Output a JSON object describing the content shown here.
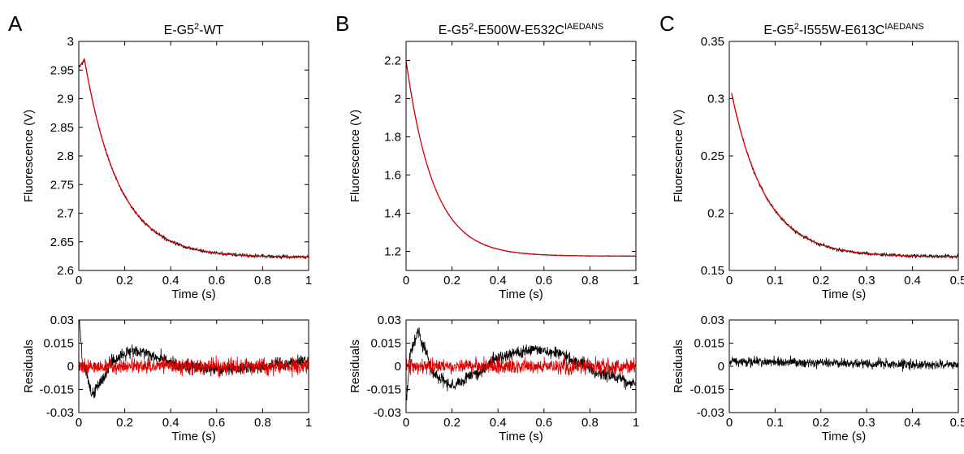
{
  "panel_labels": [
    "A",
    "B",
    "C"
  ],
  "chart_data": [
    {
      "type": "line",
      "panel": "A",
      "title": {
        "base": "E-G5",
        "sup1": "2",
        "mid": "-WT",
        "sup2": ""
      },
      "xlabel": "Time (s)",
      "ylabel": "Fluorescence (V)",
      "xlim": [
        0,
        1
      ],
      "ylim": [
        2.6,
        3
      ],
      "xticks": [
        "0",
        "0.2",
        "0.4",
        "0.6",
        "0.8",
        "1"
      ],
      "yticks": [
        "2.6",
        "2.65",
        "2.7",
        "2.75",
        "2.8",
        "2.85",
        "2.9",
        "2.95",
        "3"
      ],
      "trace": {
        "kind": "rise-decay",
        "peak_t": 0.025,
        "start": 2.955,
        "peak": 2.968,
        "plateau": 2.623,
        "tau": 0.15,
        "noise": 0.003
      },
      "series": [
        {
          "name": "",
          "color": "#000000",
          "role": "data"
        },
        {
          "name": "",
          "color": "#dd0000",
          "role": "fit"
        }
      ],
      "residuals": {
        "ylabel": "Residuals",
        "xlabel": "Time (s)",
        "ylim": [
          -0.03,
          0.03
        ],
        "yticks": [
          "-0.03",
          "-0.015",
          "0",
          "0.015",
          "0.03"
        ],
        "xticks": [
          "0",
          "0.2",
          "0.4",
          "0.6",
          "0.8",
          "1"
        ],
        "black_trend": [
          [
            0.0,
            0.03
          ],
          [
            0.02,
            0.0
          ],
          [
            0.06,
            -0.018
          ],
          [
            0.1,
            -0.009
          ],
          [
            0.15,
            0.004
          ],
          [
            0.2,
            0.009
          ],
          [
            0.27,
            0.01
          ],
          [
            0.35,
            0.005
          ],
          [
            0.45,
            0.0
          ],
          [
            0.6,
            -0.002
          ],
          [
            0.75,
            -0.001
          ],
          [
            0.9,
            0.001
          ],
          [
            1.0,
            0.004
          ]
        ],
        "black_noise": 0.004,
        "red_noise": 0.005
      }
    },
    {
      "type": "line",
      "panel": "B",
      "title": {
        "base": "E-G5",
        "sup1": "2",
        "mid": "-E500W-E532C",
        "sup2": "IAEDANS"
      },
      "xlabel": "Time (s)",
      "ylabel": "Fluorescence (V)",
      "xlim": [
        0,
        1
      ],
      "ylim": [
        1.1,
        2.3
      ],
      "xticks": [
        "0",
        "0.2",
        "0.4",
        "0.6",
        "0.8",
        "1"
      ],
      "yticks": [
        "1.2",
        "1.4",
        "1.6",
        "1.8",
        "2",
        "2.2"
      ],
      "trace": {
        "kind": "decay",
        "start": 2.2,
        "plateau": 1.175,
        "tau": 0.12,
        "noise": 0.002
      },
      "series": [
        {
          "name": "",
          "color": "#000000",
          "role": "data"
        },
        {
          "name": "",
          "color": "#dd0000",
          "role": "fit"
        }
      ],
      "residuals": {
        "ylabel": "Residuals",
        "xlabel": "Time (s)",
        "ylim": [
          -0.03,
          0.03
        ],
        "yticks": [
          "-0.03",
          "-0.015",
          "0",
          "0.015",
          "0.03"
        ],
        "xticks": [
          "0",
          "0.2",
          "0.4",
          "0.6",
          "0.8",
          "1"
        ],
        "black_trend": [
          [
            0.0,
            -0.02
          ],
          [
            0.02,
            0.01
          ],
          [
            0.05,
            0.022
          ],
          [
            0.08,
            0.012
          ],
          [
            0.12,
            -0.005
          ],
          [
            0.2,
            -0.013
          ],
          [
            0.3,
            -0.005
          ],
          [
            0.4,
            0.005
          ],
          [
            0.5,
            0.01
          ],
          [
            0.55,
            0.011
          ],
          [
            0.65,
            0.009
          ],
          [
            0.75,
            0.002
          ],
          [
            0.85,
            -0.005
          ],
          [
            1.0,
            -0.011
          ]
        ],
        "black_noise": 0.004,
        "red_noise": 0.005
      }
    },
    {
      "type": "line",
      "panel": "C",
      "title": {
        "base": "E-G5",
        "sup1": "2",
        "mid": "-I555W-E613C",
        "sup2": "IAEDANS"
      },
      "xlabel": "Time (s)",
      "ylabel": "Fluorescence (V)",
      "xlim": [
        0,
        0.5
      ],
      "ylim": [
        0.15,
        0.35
      ],
      "xticks": [
        "0",
        "0.1",
        "0.2",
        "0.3",
        "0.4",
        "0.5"
      ],
      "yticks": [
        "0.15",
        "0.2",
        "0.25",
        "0.3",
        "0.35"
      ],
      "trace": {
        "kind": "decay",
        "t0": 0.005,
        "start": 0.305,
        "plateau": 0.162,
        "tau": 0.075,
        "noise": 0.0015
      },
      "series": [
        {
          "name": "",
          "color": "#000000",
          "role": "data"
        },
        {
          "name": "",
          "color": "#dd0000",
          "role": "fit"
        }
      ],
      "residuals": {
        "ylabel": "Residuals",
        "xlabel": "Time (s)",
        "ylim": [
          -0.03,
          0.03
        ],
        "yticks": [
          "-0.03",
          "-0.015",
          "0",
          "0.015",
          "0.03"
        ],
        "xticks": [
          "0",
          "0.1",
          "0.2",
          "0.3",
          "0.4",
          "0.5"
        ],
        "black_trend": [
          [
            0.0,
            0.002
          ],
          [
            0.01,
            0.003
          ],
          [
            0.5,
            0.001
          ]
        ],
        "black_noise": 0.003,
        "red_noise": 0
      }
    }
  ]
}
